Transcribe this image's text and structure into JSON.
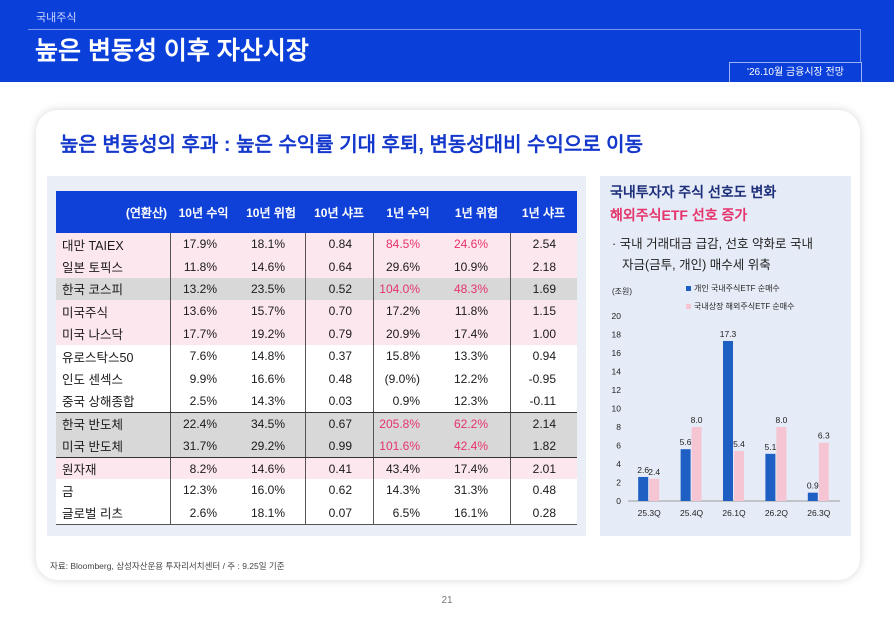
{
  "header": {
    "section": "국내주식",
    "title": "높은 변동성 이후 자산시장",
    "tag": "'26.10월 금융시장 전망"
  },
  "card": {
    "heading": "높은 변동성의 후과 : 높은 수익률 기대 후퇴, 변동성대비 수익으로 이동",
    "source": "자료: Bloomberg, 삼성자산운용 투자리서치센터 / 주 : 9.25일 기준"
  },
  "side_panel": {
    "title": "국내투자자 주식 선호도 변화",
    "subtitle": "해외주식ETF 선호 증가",
    "bullet_line1": "· 국내 거래대금 급감, 선호 약화로 국내",
    "bullet_line2": "자금(금투, 개인) 매수세 위축"
  },
  "page_number": "21",
  "colors": {
    "brand_blue": "#0b3fd9",
    "heading_blue": "#1438cc",
    "highlight_red": "#e6336b",
    "row_pink": "#fde7ee",
    "row_gray": "#d8d8d8",
    "row_white": "#ffffff",
    "panel_bg": "#e8edf7"
  },
  "chart_data": [
    {
      "type": "table",
      "columns": [
        "(연환산)",
        "10년 수익",
        "10년 위험",
        "10년 샤프",
        "1년 수익",
        "1년 위험",
        "1년 샤프"
      ],
      "rows": [
        {
          "label": "대만 TAIEX",
          "values": [
            "17.9%",
            "18.1%",
            "0.84",
            "84.5%",
            "24.6%",
            "2.54"
          ],
          "fill": "#fde7ee",
          "highlight": [
            3,
            4
          ]
        },
        {
          "label": "일본 토픽스",
          "values": [
            "11.8%",
            "14.6%",
            "0.64",
            "29.6%",
            "10.9%",
            "2.18"
          ],
          "fill": "#fde7ee",
          "highlight": []
        },
        {
          "label": "한국 코스피",
          "values": [
            "13.2%",
            "23.5%",
            "0.52",
            "104.0%",
            "48.3%",
            "1.69"
          ],
          "fill": "#d8d8d8",
          "highlight": [
            3,
            4
          ]
        },
        {
          "label": "미국주식",
          "values": [
            "13.6%",
            "15.7%",
            "0.70",
            "17.2%",
            "11.8%",
            "1.15"
          ],
          "fill": "#fde7ee",
          "highlight": []
        },
        {
          "label": "미국 나스닥",
          "values": [
            "17.7%",
            "19.2%",
            "0.79",
            "20.9%",
            "17.4%",
            "1.00"
          ],
          "fill": "#fde7ee",
          "highlight": []
        },
        {
          "label": "유로스탁스50",
          "values": [
            "7.6%",
            "14.8%",
            "0.37",
            "15.8%",
            "13.3%",
            "0.94"
          ],
          "fill": "#ffffff",
          "highlight": []
        },
        {
          "label": "인도 센섹스",
          "values": [
            "9.9%",
            "16.6%",
            "0.48",
            "(9.0%)",
            "12.2%",
            "-0.95"
          ],
          "fill": "#ffffff",
          "highlight": []
        },
        {
          "label": "중국 상해종합",
          "values": [
            "2.5%",
            "14.3%",
            "0.03",
            "0.9%",
            "12.3%",
            "-0.11"
          ],
          "fill": "#ffffff",
          "highlight": []
        },
        {
          "label": "한국 반도체",
          "values": [
            "22.4%",
            "34.5%",
            "0.67",
            "205.8%",
            "62.2%",
            "2.14"
          ],
          "fill": "#d8d8d8",
          "highlight": [
            3,
            4
          ],
          "divider_above": true
        },
        {
          "label": "미국 반도체",
          "values": [
            "31.7%",
            "29.2%",
            "0.99",
            "101.6%",
            "42.4%",
            "1.82"
          ],
          "fill": "#d8d8d8",
          "highlight": [
            3,
            4
          ]
        },
        {
          "label": "원자재",
          "values": [
            "8.2%",
            "14.6%",
            "0.41",
            "43.4%",
            "17.4%",
            "2.01"
          ],
          "fill": "#fde7ee",
          "highlight": [],
          "divider_above": true
        },
        {
          "label": "금",
          "values": [
            "12.3%",
            "16.0%",
            "0.62",
            "14.3%",
            "31.3%",
            "0.48"
          ],
          "fill": "#ffffff",
          "highlight": []
        },
        {
          "label": "글로벌 리츠",
          "values": [
            "2.6%",
            "18.1%",
            "0.07",
            "6.5%",
            "16.1%",
            "0.28"
          ],
          "fill": "#ffffff",
          "highlight": []
        }
      ]
    },
    {
      "type": "bar",
      "unit": "(조원)",
      "categories": [
        "25.3Q",
        "25.4Q",
        "26.1Q",
        "26.2Q",
        "26.3Q"
      ],
      "series": [
        {
          "name": "개인 국내주식ETF 순매수",
          "values": [
            2.6,
            5.6,
            17.3,
            5.1,
            0.9
          ],
          "labels": [
            "2.6",
            "5.6",
            "17.3",
            "5.1",
            "0.9"
          ],
          "color": "#1d5fc2"
        },
        {
          "name": "국내상장 해외주식ETF 순매수",
          "values": [
            2.4,
            8.0,
            5.4,
            8.0,
            6.3
          ],
          "labels": [
            "2.4",
            "8.0",
            "5.4",
            "8.0",
            "6.3"
          ],
          "color": "#f6c5d4"
        }
      ],
      "ylim": [
        0,
        20
      ],
      "yticks": [
        0,
        2,
        4,
        6,
        8,
        10,
        12,
        14,
        16,
        18,
        20
      ],
      "grid": false,
      "legend": "top"
    }
  ]
}
